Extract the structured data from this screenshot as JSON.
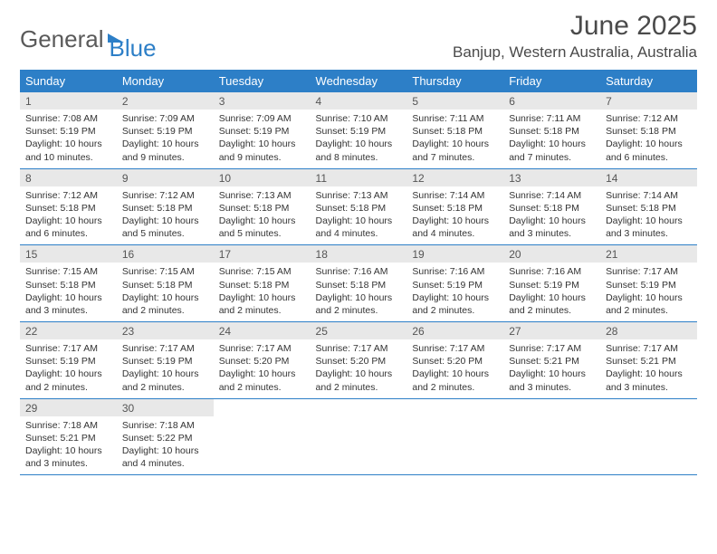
{
  "logo": {
    "part1": "General",
    "part2": "Blue"
  },
  "title": "June 2025",
  "location": "Banjup, Western Australia, Australia",
  "colors": {
    "header_bg": "#2d7fc7",
    "header_text": "#ffffff",
    "daynum_bg": "#e8e8e8",
    "border": "#2d7fc7",
    "text": "#333333",
    "logo_gray": "#5a5a5a",
    "logo_blue": "#2d7fc7"
  },
  "weekdays": [
    "Sunday",
    "Monday",
    "Tuesday",
    "Wednesday",
    "Thursday",
    "Friday",
    "Saturday"
  ],
  "weeks": [
    [
      {
        "n": "1",
        "sunrise": "7:08 AM",
        "sunset": "5:19 PM",
        "daylight": "10 hours and 10 minutes."
      },
      {
        "n": "2",
        "sunrise": "7:09 AM",
        "sunset": "5:19 PM",
        "daylight": "10 hours and 9 minutes."
      },
      {
        "n": "3",
        "sunrise": "7:09 AM",
        "sunset": "5:19 PM",
        "daylight": "10 hours and 9 minutes."
      },
      {
        "n": "4",
        "sunrise": "7:10 AM",
        "sunset": "5:19 PM",
        "daylight": "10 hours and 8 minutes."
      },
      {
        "n": "5",
        "sunrise": "7:11 AM",
        "sunset": "5:18 PM",
        "daylight": "10 hours and 7 minutes."
      },
      {
        "n": "6",
        "sunrise": "7:11 AM",
        "sunset": "5:18 PM",
        "daylight": "10 hours and 7 minutes."
      },
      {
        "n": "7",
        "sunrise": "7:12 AM",
        "sunset": "5:18 PM",
        "daylight": "10 hours and 6 minutes."
      }
    ],
    [
      {
        "n": "8",
        "sunrise": "7:12 AM",
        "sunset": "5:18 PM",
        "daylight": "10 hours and 6 minutes."
      },
      {
        "n": "9",
        "sunrise": "7:12 AM",
        "sunset": "5:18 PM",
        "daylight": "10 hours and 5 minutes."
      },
      {
        "n": "10",
        "sunrise": "7:13 AM",
        "sunset": "5:18 PM",
        "daylight": "10 hours and 5 minutes."
      },
      {
        "n": "11",
        "sunrise": "7:13 AM",
        "sunset": "5:18 PM",
        "daylight": "10 hours and 4 minutes."
      },
      {
        "n": "12",
        "sunrise": "7:14 AM",
        "sunset": "5:18 PM",
        "daylight": "10 hours and 4 minutes."
      },
      {
        "n": "13",
        "sunrise": "7:14 AM",
        "sunset": "5:18 PM",
        "daylight": "10 hours and 3 minutes."
      },
      {
        "n": "14",
        "sunrise": "7:14 AM",
        "sunset": "5:18 PM",
        "daylight": "10 hours and 3 minutes."
      }
    ],
    [
      {
        "n": "15",
        "sunrise": "7:15 AM",
        "sunset": "5:18 PM",
        "daylight": "10 hours and 3 minutes."
      },
      {
        "n": "16",
        "sunrise": "7:15 AM",
        "sunset": "5:18 PM",
        "daylight": "10 hours and 2 minutes."
      },
      {
        "n": "17",
        "sunrise": "7:15 AM",
        "sunset": "5:18 PM",
        "daylight": "10 hours and 2 minutes."
      },
      {
        "n": "18",
        "sunrise": "7:16 AM",
        "sunset": "5:18 PM",
        "daylight": "10 hours and 2 minutes."
      },
      {
        "n": "19",
        "sunrise": "7:16 AM",
        "sunset": "5:19 PM",
        "daylight": "10 hours and 2 minutes."
      },
      {
        "n": "20",
        "sunrise": "7:16 AM",
        "sunset": "5:19 PM",
        "daylight": "10 hours and 2 minutes."
      },
      {
        "n": "21",
        "sunrise": "7:17 AM",
        "sunset": "5:19 PM",
        "daylight": "10 hours and 2 minutes."
      }
    ],
    [
      {
        "n": "22",
        "sunrise": "7:17 AM",
        "sunset": "5:19 PM",
        "daylight": "10 hours and 2 minutes."
      },
      {
        "n": "23",
        "sunrise": "7:17 AM",
        "sunset": "5:19 PM",
        "daylight": "10 hours and 2 minutes."
      },
      {
        "n": "24",
        "sunrise": "7:17 AM",
        "sunset": "5:20 PM",
        "daylight": "10 hours and 2 minutes."
      },
      {
        "n": "25",
        "sunrise": "7:17 AM",
        "sunset": "5:20 PM",
        "daylight": "10 hours and 2 minutes."
      },
      {
        "n": "26",
        "sunrise": "7:17 AM",
        "sunset": "5:20 PM",
        "daylight": "10 hours and 2 minutes."
      },
      {
        "n": "27",
        "sunrise": "7:17 AM",
        "sunset": "5:21 PM",
        "daylight": "10 hours and 3 minutes."
      },
      {
        "n": "28",
        "sunrise": "7:17 AM",
        "sunset": "5:21 PM",
        "daylight": "10 hours and 3 minutes."
      }
    ],
    [
      {
        "n": "29",
        "sunrise": "7:18 AM",
        "sunset": "5:21 PM",
        "daylight": "10 hours and 3 minutes."
      },
      {
        "n": "30",
        "sunrise": "7:18 AM",
        "sunset": "5:22 PM",
        "daylight": "10 hours and 4 minutes."
      },
      null,
      null,
      null,
      null,
      null
    ]
  ],
  "labels": {
    "sunrise": "Sunrise:",
    "sunset": "Sunset:",
    "daylight": "Daylight:"
  }
}
